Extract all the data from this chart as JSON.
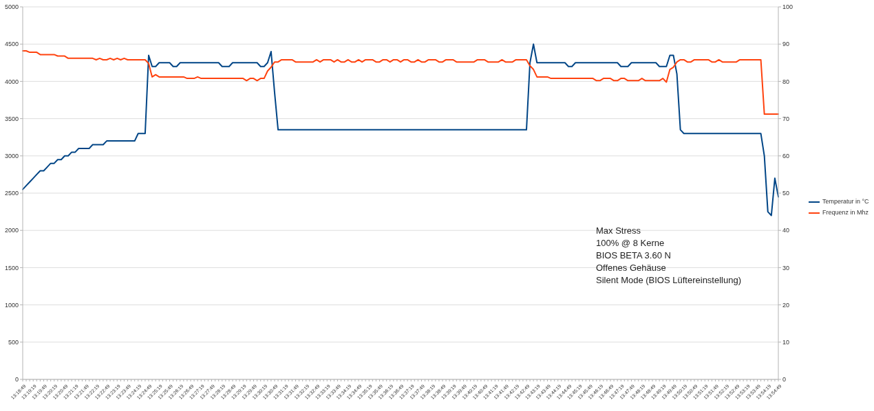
{
  "chart_data": {
    "type": "line",
    "categories": [
      "13:18:49",
      null,
      null,
      "13:19:19",
      null,
      null,
      "13:19:49",
      null,
      null,
      "13:20:19",
      null,
      null,
      "13:20:49",
      null,
      null,
      "13:21:19",
      null,
      null,
      "13:21:49",
      null,
      null,
      "13:22:19",
      null,
      null,
      "13:22:49",
      null,
      null,
      "13:23:19",
      null,
      null,
      "13:23:49",
      null,
      null,
      "13:24:19",
      null,
      null,
      "13:24:49",
      null,
      null,
      "13:25:19",
      null,
      null,
      "13:25:49",
      null,
      null,
      "13:26:19",
      null,
      null,
      "13:26:49",
      null,
      null,
      "13:27:19",
      null,
      null,
      "13:27:49",
      null,
      null,
      "13:28:19",
      null,
      null,
      "13:28:49",
      null,
      null,
      "13:29:19",
      null,
      null,
      "13:29:49",
      null,
      null,
      "13:30:19",
      null,
      null,
      "13:30:49",
      null,
      null,
      "13:31:19",
      null,
      null,
      "13:31:49",
      null,
      null,
      "13:32:19",
      null,
      null,
      "13:32:49",
      null,
      null,
      "13:33:19",
      null,
      null,
      "13:33:49",
      null,
      null,
      "13:34:19",
      null,
      null,
      "13:34:49",
      null,
      null,
      "13:35:19",
      null,
      null,
      "13:35:49",
      null,
      null,
      "13:36:19",
      null,
      null,
      "13:36:49",
      null,
      null,
      "13:37:19",
      null,
      null,
      "13:37:49",
      null,
      null,
      "13:38:19",
      null,
      null,
      "13:38:49",
      null,
      null,
      "13:39:19",
      null,
      null,
      "13:39:49",
      null,
      null,
      "13:40:19",
      null,
      null,
      "13:40:49",
      null,
      null,
      "13:41:19",
      null,
      null,
      "13:41:49",
      null,
      null,
      "13:42:19",
      null,
      null,
      "13:42:49",
      null,
      null,
      "13:43:19",
      null,
      null,
      "13:43:49",
      null,
      null,
      "13:44:19",
      null,
      null,
      "13:44:49",
      null,
      null,
      "13:45:19",
      null,
      null,
      "13:45:49",
      null,
      null,
      "13:46:19",
      null,
      null,
      "13:46:49",
      null,
      null,
      "13:47:19",
      null,
      null,
      "13:47:49",
      null,
      null,
      "13:48:19",
      null,
      null,
      "13:48:49",
      null,
      null,
      "13:49:19",
      null,
      null,
      "13:49:49",
      null,
      null,
      "13:50:19",
      null,
      null,
      "13:50:49",
      null,
      null,
      "13:51:19",
      null,
      null,
      "13:51:49",
      null,
      null,
      "13:52:19",
      null,
      null,
      "13:52:49",
      null,
      null,
      "13:53:19",
      null,
      null,
      "13:53:49",
      null,
      null,
      "13:54:19",
      null,
      null,
      "13:54:49"
    ],
    "series": [
      {
        "name": "Temperatur in °C",
        "color": "#004586",
        "axis": "y2",
        "values": [
          51,
          52,
          53,
          54,
          55,
          56,
          56,
          57,
          58,
          58,
          59,
          59,
          60,
          60,
          61,
          61,
          62,
          62,
          62,
          62,
          63,
          63,
          63,
          63,
          64,
          64,
          64,
          64,
          64,
          64,
          64,
          64,
          64,
          66,
          66,
          66,
          87,
          84,
          84,
          85,
          85,
          85,
          85,
          84,
          84,
          85,
          85,
          85,
          85,
          85,
          85,
          85,
          85,
          85,
          85,
          85,
          85,
          84,
          84,
          84,
          85,
          85,
          85,
          85,
          85,
          85,
          85,
          85,
          84,
          84,
          85,
          88,
          77,
          67,
          67,
          67,
          67,
          67,
          67,
          67,
          67,
          67,
          67,
          67,
          67,
          67,
          67,
          67,
          67,
          67,
          67,
          67,
          67,
          67,
          67,
          67,
          67,
          67,
          67,
          67,
          67,
          67,
          67,
          67,
          67,
          67,
          67,
          67,
          67,
          67,
          67,
          67,
          67,
          67,
          67,
          67,
          67,
          67,
          67,
          67,
          67,
          67,
          67,
          67,
          67,
          67,
          67,
          67,
          67,
          67,
          67,
          67,
          67,
          67,
          67,
          67,
          67,
          67,
          67,
          67,
          67,
          67,
          67,
          67,
          67,
          85,
          90,
          85,
          85,
          85,
          85,
          85,
          85,
          85,
          85,
          85,
          84,
          84,
          85,
          85,
          85,
          85,
          85,
          85,
          85,
          85,
          85,
          85,
          85,
          85,
          85,
          84,
          84,
          84,
          85,
          85,
          85,
          85,
          85,
          85,
          85,
          85,
          84,
          84,
          84,
          87,
          87,
          82,
          67,
          66,
          66,
          66,
          66,
          66,
          66,
          66,
          66,
          66,
          66,
          66,
          66,
          66,
          66,
          66,
          66,
          66,
          66,
          66,
          66,
          66,
          66,
          66,
          60,
          45,
          44,
          54,
          49
        ]
      },
      {
        "name": "Frequenz in Mhz",
        "color": "#ff420e",
        "values": [
          4410,
          4410,
          4390,
          4390,
          4390,
          4360,
          4360,
          4360,
          4360,
          4360,
          4340,
          4340,
          4340,
          4310,
          4310,
          4310,
          4310,
          4310,
          4310,
          4310,
          4310,
          4290,
          4310,
          4290,
          4290,
          4310,
          4290,
          4310,
          4290,
          4310,
          4290,
          4290,
          4290,
          4290,
          4290,
          4290,
          4240,
          4060,
          4090,
          4060,
          4060,
          4060,
          4060,
          4060,
          4060,
          4060,
          4060,
          4040,
          4040,
          4040,
          4060,
          4040,
          4040,
          4040,
          4040,
          4040,
          4040,
          4040,
          4040,
          4040,
          4040,
          4040,
          4040,
          4040,
          4010,
          4040,
          4040,
          4010,
          4040,
          4040,
          4140,
          4190,
          4260,
          4260,
          4290,
          4290,
          4290,
          4290,
          4260,
          4260,
          4260,
          4260,
          4260,
          4260,
          4290,
          4260,
          4290,
          4290,
          4290,
          4260,
          4290,
          4260,
          4260,
          4290,
          4260,
          4260,
          4290,
          4260,
          4290,
          4290,
          4290,
          4260,
          4260,
          4290,
          4290,
          4260,
          4290,
          4290,
          4260,
          4290,
          4290,
          4260,
          4260,
          4290,
          4260,
          4260,
          4290,
          4290,
          4290,
          4260,
          4260,
          4290,
          4290,
          4290,
          4260,
          4260,
          4260,
          4260,
          4260,
          4260,
          4290,
          4290,
          4290,
          4260,
          4260,
          4260,
          4260,
          4290,
          4260,
          4260,
          4260,
          4290,
          4290,
          4290,
          4290,
          4210,
          4160,
          4060,
          4060,
          4060,
          4060,
          4040,
          4040,
          4040,
          4040,
          4040,
          4040,
          4040,
          4040,
          4040,
          4040,
          4040,
          4040,
          4040,
          4010,
          4010,
          4040,
          4040,
          4040,
          4010,
          4010,
          4040,
          4040,
          4010,
          4010,
          4010,
          4010,
          4040,
          4010,
          4010,
          4010,
          4010,
          4010,
          4040,
          3990,
          4160,
          4190,
          4260,
          4290,
          4290,
          4260,
          4260,
          4290,
          4290,
          4290,
          4290,
          4290,
          4260,
          4260,
          4290,
          4260,
          4260,
          4260,
          4260,
          4260,
          4290,
          4290,
          4290,
          4290,
          4290,
          4290,
          4290,
          3560,
          3560,
          3560,
          3560,
          3560
        ]
      }
    ],
    "ylim": [
      0,
      5000
    ],
    "yticks": [
      0,
      500,
      1000,
      1500,
      2000,
      2500,
      3000,
      3500,
      4000,
      4500,
      5000
    ],
    "y2lim": [
      0,
      100
    ],
    "y2ticks": [
      0,
      10,
      20,
      30,
      40,
      50,
      60,
      70,
      80,
      90,
      100
    ],
    "grid": "y",
    "legend": "right",
    "marker": "none",
    "annotations": [
      "Max Stress",
      "100% @ 8 Kerne",
      "BIOS BETA 3.60 N",
      "Offenes Gehäuse",
      "Silent Mode (BIOS Lüftereinstellung)"
    ]
  }
}
